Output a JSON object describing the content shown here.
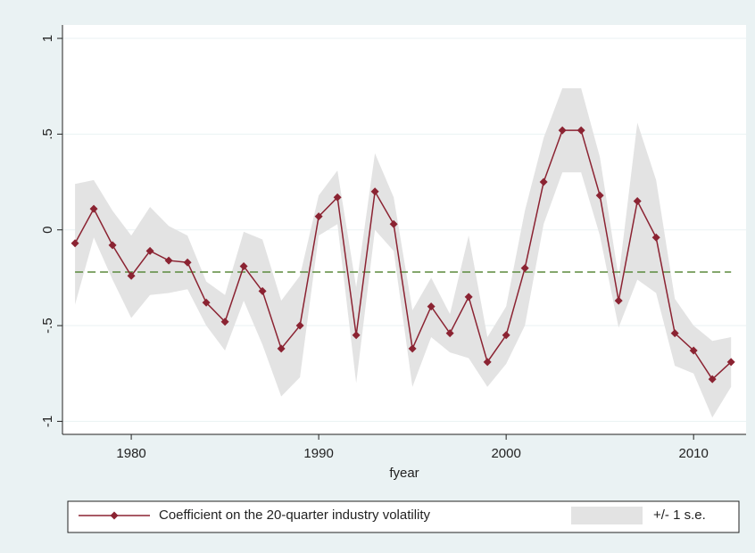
{
  "chart_data": {
    "type": "line",
    "x": [
      1977,
      1978,
      1979,
      1980,
      1981,
      1982,
      1983,
      1984,
      1985,
      1986,
      1987,
      1988,
      1989,
      1990,
      1991,
      1992,
      1993,
      1994,
      1995,
      1996,
      1997,
      1998,
      1999,
      2000,
      2001,
      2002,
      2003,
      2004,
      2005,
      2006,
      2007,
      2008,
      2009,
      2010,
      2011,
      2012
    ],
    "series": [
      {
        "name": "Coefficient on the 20-quarter industry volatility",
        "color": "#8b2332",
        "values": [
          -0.07,
          0.11,
          -0.08,
          -0.24,
          -0.11,
          -0.16,
          -0.17,
          -0.38,
          -0.48,
          -0.19,
          -0.32,
          -0.62,
          -0.5,
          0.07,
          0.17,
          -0.55,
          0.2,
          0.03,
          -0.62,
          -0.4,
          -0.54,
          -0.35,
          -0.69,
          -0.55,
          -0.2,
          0.25,
          0.52,
          0.52,
          0.18,
          -0.37,
          0.15,
          -0.04,
          -0.54,
          -0.63,
          -0.78,
          -0.69
        ]
      }
    ],
    "band": {
      "name": "+/- 1 s.e.",
      "color": "#e3e3e3",
      "upper": [
        0.24,
        0.26,
        0.1,
        -0.03,
        0.12,
        0.02,
        -0.03,
        -0.27,
        -0.34,
        -0.01,
        -0.05,
        -0.37,
        -0.24,
        0.18,
        0.31,
        -0.3,
        0.4,
        0.17,
        -0.42,
        -0.25,
        -0.44,
        -0.03,
        -0.56,
        -0.4,
        0.1,
        0.48,
        0.74,
        0.74,
        0.38,
        -0.25,
        0.56,
        0.26,
        -0.36,
        -0.5,
        -0.58,
        -0.56
      ],
      "lower": [
        -0.39,
        -0.04,
        -0.26,
        -0.46,
        -0.34,
        -0.33,
        -0.31,
        -0.5,
        -0.63,
        -0.37,
        -0.6,
        -0.87,
        -0.77,
        -0.03,
        0.03,
        -0.8,
        0.0,
        -0.11,
        -0.82,
        -0.56,
        -0.64,
        -0.67,
        -0.82,
        -0.7,
        -0.5,
        0.03,
        0.3,
        0.3,
        -0.03,
        -0.51,
        -0.26,
        -0.33,
        -0.71,
        -0.75,
        -0.98,
        -0.82
      ]
    },
    "hline": {
      "value": -0.22,
      "color": "#5b8a3c"
    },
    "xlabel": "fyear",
    "xlim": [
      1976.33,
      2012.8
    ],
    "xticks": [
      1980,
      1990,
      2000,
      2010
    ],
    "ylim": [
      -1.068,
      1.07
    ],
    "yticks": [
      -1,
      {
        "value": -0.5,
        "label": "-.5"
      },
      0,
      {
        "value": 0.5,
        "label": ".5"
      },
      1
    ],
    "grid": true
  }
}
